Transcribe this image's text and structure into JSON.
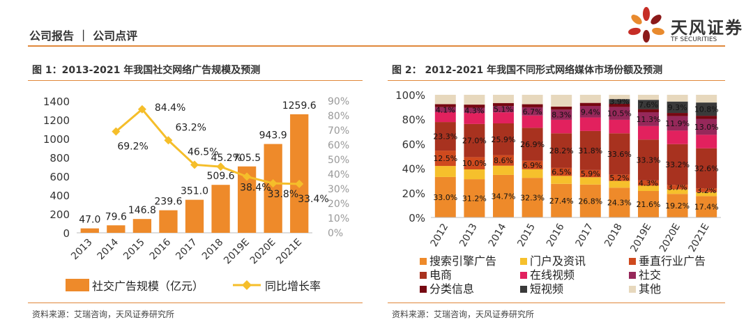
{
  "header": {
    "title": "公司报告 ｜ 公司点评"
  },
  "logo": {
    "name": "天风证券",
    "sub": "TF SECURITIES",
    "petal_colors": [
      "#c62d26",
      "#e88a2e",
      "#8b1a1a"
    ]
  },
  "figures": [
    {
      "title": "图 1：2013-2021 年我国社交网络广告规模及预测",
      "source": "资料来源：艾瑞咨询，天风证券研究所"
    },
    {
      "title": "图 2：  2012-2021 年我国不同形式网络媒体市场份额及预测",
      "source": "资料来源：艾瑞咨询，天风证券研究所"
    }
  ],
  "chart_data": [
    {
      "type": "bar",
      "categories": [
        "2013",
        "2014",
        "2015",
        "2016",
        "2017",
        "2018",
        "2019E",
        "2020E",
        "2021E"
      ],
      "series": [
        {
          "name": "社交广告规模（亿元）",
          "kind": "bar",
          "color": "#ee8a2a",
          "values": [
            47.0,
            79.6,
            146.8,
            239.6,
            351.0,
            509.6,
            705.5,
            943.9,
            1259.6
          ],
          "labels": [
            "47.0",
            "79.6",
            "146.8",
            "239.6",
            "351.0",
            "509.6",
            "705.5",
            "943.9",
            "1259.6"
          ]
        },
        {
          "name": "同比增长率",
          "kind": "line",
          "color": "#f5be2a",
          "values": [
            null,
            69.2,
            84.4,
            63.2,
            46.5,
            45.2,
            38.4,
            33.8,
            33.4
          ],
          "labels": [
            "",
            "69.2%",
            "84.4%",
            "63.2%",
            "46.5%",
            "45.2%",
            "38.4%",
            "33.8%",
            "33.4%"
          ]
        }
      ],
      "ylim": [
        0,
        1400
      ],
      "yticks": [
        "0",
        "200",
        "400",
        "600",
        "800",
        "1000",
        "1200",
        "1400"
      ],
      "y2lim": [
        0,
        90
      ],
      "y2ticks": [
        "0%",
        "10%",
        "20%",
        "30%",
        "40%",
        "50%",
        "60%",
        "70%",
        "80%",
        "90%"
      ],
      "legend": [
        "社交广告规模（亿元）",
        "同比增长率"
      ]
    },
    {
      "type": "bar",
      "stacked": true,
      "categories": [
        "2012",
        "2013",
        "2014",
        "2015",
        "2016",
        "2017",
        "2018",
        "2019E",
        "2020E",
        "2021E"
      ],
      "ylim": [
        0,
        100
      ],
      "yticks": [
        "0%",
        "20%",
        "40%",
        "60%",
        "80%",
        "100%"
      ],
      "series": [
        {
          "name": "搜索引擎广告",
          "color": "#ee8a2a",
          "values": [
            33.0,
            31.2,
            34.7,
            32.3,
            27.4,
            26.8,
            24.3,
            21.6,
            19.2,
            17.4
          ],
          "labels": [
            "33.0%",
            "31.2%",
            "34.7%",
            "32.3%",
            "27.4%",
            "26.8%",
            "24.3%",
            "21.6%",
            "19.2%",
            "17.4%"
          ]
        },
        {
          "name": "门户及资讯",
          "color": "#f6c02c",
          "values": [
            9.0,
            8.0,
            7.5,
            7.0,
            6.5,
            6.0,
            5.5,
            4.3,
            3.7,
            3.2
          ],
          "labels": [
            "",
            "",
            "",
            "",
            "",
            "",
            "",
            "",
            "",
            ""
          ]
        },
        {
          "name": "垂直行业广告",
          "color": "#cf4a1e",
          "values": [
            12.5,
            10.0,
            8.6,
            6.9,
            6.5,
            5.9,
            5.2,
            4.3,
            3.7,
            3.2
          ],
          "labels": [
            "12.5%",
            "10.0%",
            "8.6%",
            "6.9%",
            "6.5%",
            "5.9%",
            "5.2%",
            "4.3%",
            "3.7%",
            "3.2%"
          ]
        },
        {
          "name": "电商",
          "color": "#a8321f",
          "values": [
            23.3,
            27.0,
            25.9,
            26.9,
            28.2,
            31.8,
            33.6,
            33.3,
            33.2,
            32.6
          ],
          "labels": [
            "23.3%",
            "27.0%",
            "25.9%",
            "26.9%",
            "28.2%",
            "31.8%",
            "33.6%",
            "33.3%",
            "33.2%",
            "32.6%"
          ]
        },
        {
          "name": "在线视频",
          "color": "#e2215e",
          "values": [
            8.0,
            9.0,
            9.0,
            10.0,
            11.0,
            11.0,
            11.0,
            11.0,
            11.0,
            11.0
          ],
          "labels": [
            "",
            "",
            "",
            "",
            "",
            "",
            "",
            "",
            "",
            ""
          ]
        },
        {
          "name": "社交",
          "color": "#96285a",
          "values": [
            4.1,
            4.3,
            5.1,
            6.7,
            8.3,
            9.4,
            10.5,
            11.3,
            11.9,
            13.0
          ],
          "labels": [
            "4.1%",
            "4.3%",
            "5.1%",
            "6.7%",
            "8.3%",
            "9.4%",
            "10.5%",
            "11.3%",
            "11.9%",
            "13.0%"
          ]
        },
        {
          "name": "分类信息",
          "color": "#760812",
          "values": [
            2.5,
            2.5,
            2.5,
            2.5,
            2.5,
            2.5,
            2.5,
            2.5,
            2.5,
            2.5
          ],
          "labels": [
            "",
            "",
            "",
            "",
            "",
            "",
            "",
            "",
            "",
            ""
          ]
        },
        {
          "name": "短视频",
          "color": "#3a3a3a",
          "values": [
            0,
            0,
            0,
            0,
            0,
            0,
            3.9,
            7.6,
            9.3,
            10.8
          ],
          "labels": [
            "",
            "",
            "",
            "",
            "",
            "",
            "3.9%",
            "7.6%",
            "9.3%",
            "10.8%"
          ]
        },
        {
          "name": "其他",
          "color": "#e7d8bd",
          "values": [
            7.6,
            8.0,
            6.7,
            7.7,
            9.6,
            6.6,
            3.5,
            4.1,
            5.5,
            6.3
          ],
          "labels": [
            "",
            "",
            "",
            "",
            "",
            "",
            "",
            "",
            "",
            ""
          ]
        }
      ],
      "legend": [
        "搜索引擎广告",
        "门户及资讯",
        "垂直行业广告",
        "电商",
        "在线视频",
        "社交",
        "分类信息",
        "短视频",
        "其他"
      ]
    }
  ]
}
